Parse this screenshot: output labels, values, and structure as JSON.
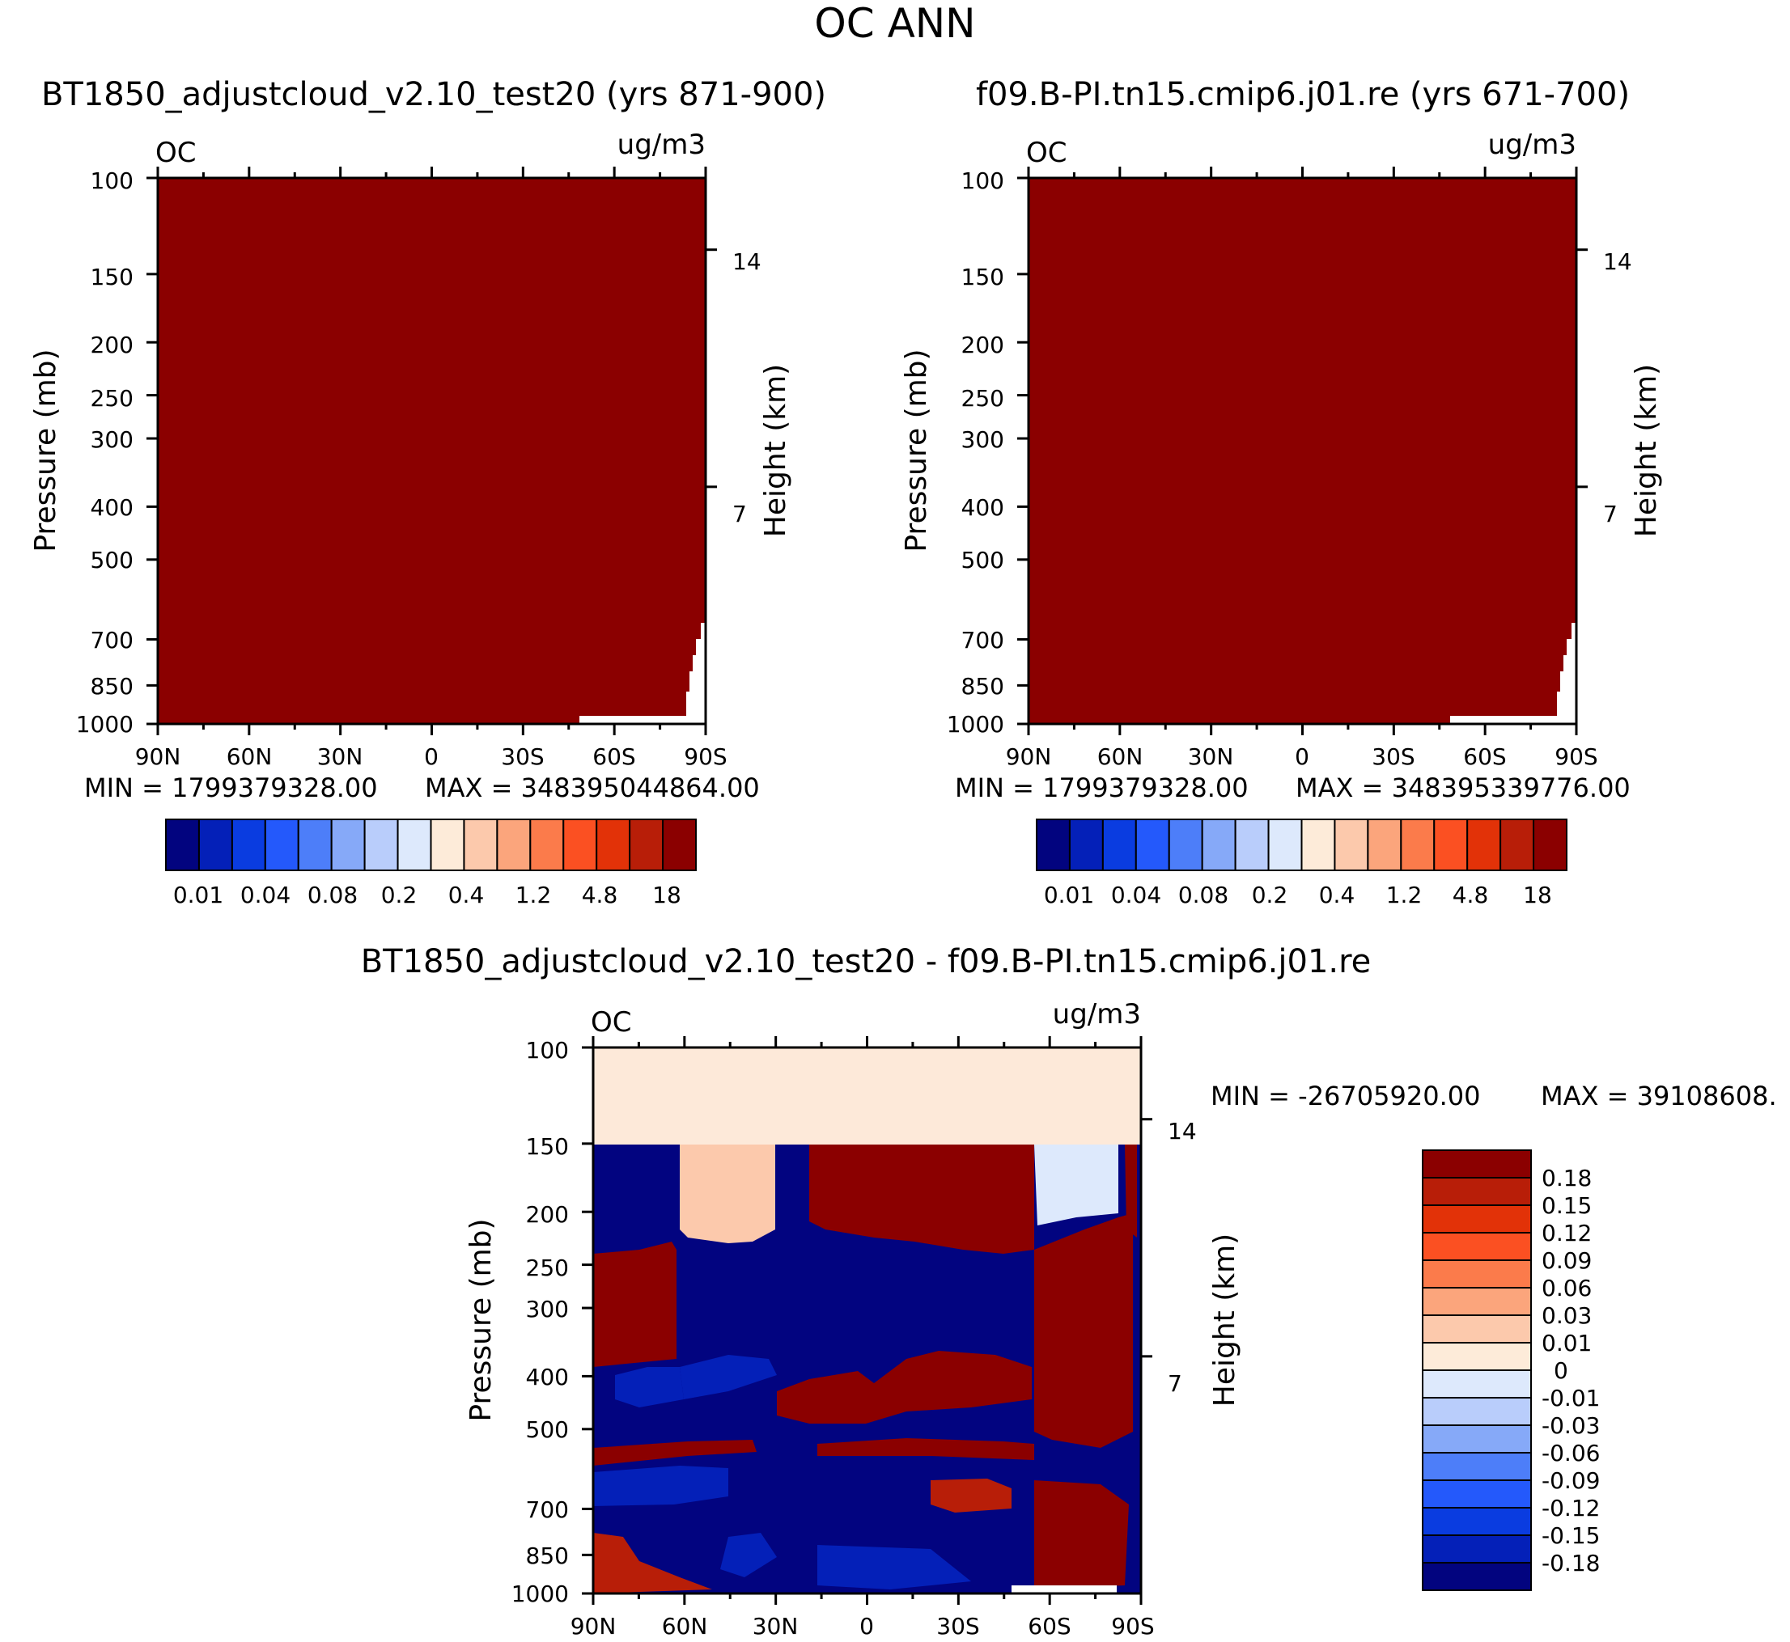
{
  "page_title": "OC ANN",
  "colors": {
    "dark_red": "#8b0000",
    "model_bg": "#8b0000",
    "light_peach": "#fde9d9",
    "navy": "#020480",
    "pale_blue": "#d9e8fb"
  },
  "chart_data": [
    {
      "type": "contour",
      "title": "BT1850_adjustcloud_v2.10_test20 (yrs 871-900)",
      "field_label": "OC",
      "units": "ug/m3",
      "ylabel": "Pressure (mb)",
      "ylabel_right": "Height (km)",
      "yticks": [
        "100",
        "150",
        "200",
        "250",
        "300",
        "400",
        "500",
        "700",
        "850",
        "1000"
      ],
      "yticks_right": [
        "14",
        "7"
      ],
      "xticks": [
        "90N",
        "60N",
        "30N",
        "0",
        "30S",
        "60S",
        "90S"
      ],
      "min_label": "MIN = 1799379328.00",
      "max_label": "MAX = 348395044864.00",
      "colorbar_labels": [
        "0.01",
        "0.04",
        "0.08",
        "0.2",
        "0.4",
        "1.2",
        "4.8",
        "18"
      ],
      "colorbar_colors": [
        "#02047f",
        "#0420b8",
        "#0a3ce0",
        "#2459fb",
        "#4d7ef9",
        "#86a9f8",
        "#b9cdfb",
        "#dde9fc",
        "#fdebd9",
        "#fcc9ac",
        "#fba57c",
        "#fb7b4b",
        "#fb5022",
        "#e23208",
        "#b81e08",
        "#8b0000"
      ]
    },
    {
      "type": "contour",
      "title": "f09.B-PI.tn15.cmip6.j01.re (yrs 671-700)",
      "field_label": "OC",
      "units": "ug/m3",
      "ylabel": "Pressure (mb)",
      "ylabel_right": "Height (km)",
      "yticks": [
        "100",
        "150",
        "200",
        "250",
        "300",
        "400",
        "500",
        "700",
        "850",
        "1000"
      ],
      "yticks_right": [
        "14",
        "7"
      ],
      "xticks": [
        "90N",
        "60N",
        "30N",
        "0",
        "30S",
        "60S",
        "90S"
      ],
      "min_label": "MIN = 1799379328.00",
      "max_label": "MAX = 348395339776.00",
      "colorbar_labels": [
        "0.01",
        "0.04",
        "0.08",
        "0.2",
        "0.4",
        "1.2",
        "4.8",
        "18"
      ],
      "colorbar_colors": [
        "#02047f",
        "#0420b8",
        "#0a3ce0",
        "#2459fb",
        "#4d7ef9",
        "#86a9f8",
        "#b9cdfb",
        "#dde9fc",
        "#fdebd9",
        "#fcc9ac",
        "#fba57c",
        "#fb7b4b",
        "#fb5022",
        "#e23208",
        "#b81e08",
        "#8b0000"
      ]
    },
    {
      "type": "contour",
      "title": "BT1850_adjustcloud_v2.10_test20 - f09.B-PI.tn15.cmip6.j01.re",
      "field_label": "OC",
      "units": "ug/m3",
      "ylabel": "Pressure (mb)",
      "ylabel_right": "Height (km)",
      "yticks": [
        "100",
        "150",
        "200",
        "250",
        "300",
        "400",
        "500",
        "700",
        "850",
        "1000"
      ],
      "yticks_right": [
        "14",
        "7"
      ],
      "xticks": [
        "90N",
        "60N",
        "30N",
        "0",
        "30S",
        "60S",
        "90S"
      ],
      "min_label": "MIN = -26705920.00",
      "max_label": "MAX = 39108608.",
      "colorbar_labels": [
        "0.18",
        "0.15",
        "0.12",
        "0.09",
        "0.06",
        "0.03",
        "0.01",
        "0",
        "-0.01",
        "-0.03",
        "-0.06",
        "-0.09",
        "-0.12",
        "-0.15",
        "-0.18"
      ],
      "colorbar_colors": [
        "#8b0000",
        "#b81e08",
        "#e23208",
        "#fb5022",
        "#fb7b4b",
        "#fba57c",
        "#fcc9ac",
        "#fdebd9",
        "#dde9fc",
        "#b9cdfb",
        "#86a9f8",
        "#4d7ef9",
        "#2459fb",
        "#0a3ce0",
        "#0420b8",
        "#02047f"
      ]
    }
  ]
}
